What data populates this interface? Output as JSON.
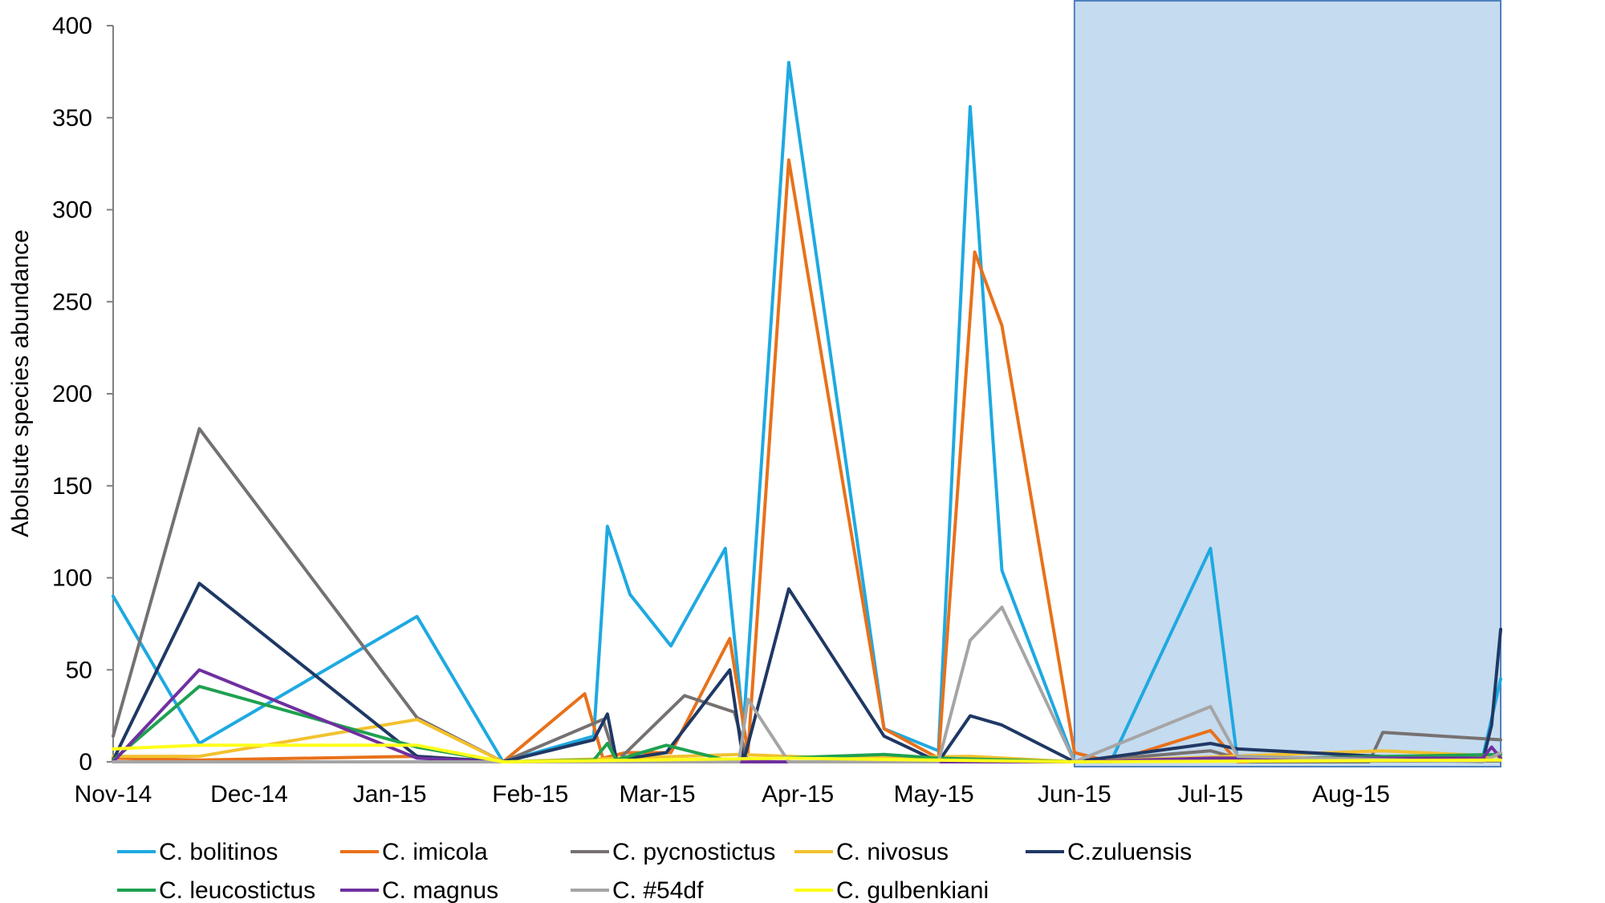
{
  "chart_data": {
    "type": "line",
    "title": "",
    "xlabel": "",
    "ylabel": "Abolsute species abundance",
    "ylim": [
      0,
      400
    ],
    "yticks": [
      0,
      50,
      100,
      150,
      200,
      250,
      300,
      350,
      400
    ],
    "x_range": [
      "2014-11-01",
      "2015-09-03"
    ],
    "x_tick_labels": [
      {
        "label": "Nov-14",
        "date": "2014-11-01"
      },
      {
        "label": "Dec-14",
        "date": "2014-12-01"
      },
      {
        "label": "Jan-15",
        "date": "2015-01-01"
      },
      {
        "label": "Feb-15",
        "date": "2015-02-01"
      },
      {
        "label": "Mar-15",
        "date": "2015-03-01"
      },
      {
        "label": "Apr-15",
        "date": "2015-04-01"
      },
      {
        "label": "May-15",
        "date": "2015-05-01"
      },
      {
        "label": "Jun-15",
        "date": "2015-06-01"
      },
      {
        "label": "Jul-15",
        "date": "2015-07-01"
      },
      {
        "label": "Aug-15",
        "date": "2015-08-01"
      }
    ],
    "highlight_region": {
      "start": "2015-06-01",
      "end": "2015-09-03",
      "color": "#c5dbef",
      "border": "#4f81bd"
    },
    "legend_position": "bottom",
    "series": [
      {
        "name": "C. bolitinos",
        "color": "#1ea9e1",
        "x": [
          "2014-11-01",
          "2014-11-20",
          "2015-01-07",
          "2015-01-26",
          "2015-02-15",
          "2015-02-18",
          "2015-02-23",
          "2015-03-04",
          "2015-03-16",
          "2015-03-20",
          "2015-03-30",
          "2015-04-20",
          "2015-05-02",
          "2015-05-09",
          "2015-05-16",
          "2015-06-01",
          "2015-06-09",
          "2015-07-01",
          "2015-07-07",
          "2015-08-30",
          "2015-09-03"
        ],
        "y": [
          90,
          10,
          79,
          0,
          14,
          128,
          91,
          63,
          116,
          19,
          380,
          18,
          6,
          356,
          104,
          0,
          0,
          116,
          0,
          2,
          45
        ]
      },
      {
        "name": "C. imicola",
        "color": "#e8711a",
        "x": [
          "2014-11-01",
          "2014-11-20",
          "2015-01-07",
          "2015-01-26",
          "2015-02-13",
          "2015-02-17",
          "2015-02-22",
          "2015-03-04",
          "2015-03-17",
          "2015-03-21",
          "2015-03-30",
          "2015-04-20",
          "2015-05-02",
          "2015-05-10",
          "2015-05-16",
          "2015-06-01",
          "2015-06-09",
          "2015-07-01",
          "2015-07-07",
          "2015-08-30",
          "2015-09-03"
        ],
        "y": [
          2,
          1,
          3,
          0,
          37,
          2,
          5,
          5,
          67,
          5,
          327,
          18,
          2,
          277,
          237,
          5,
          0,
          17,
          0,
          2,
          5
        ]
      },
      {
        "name": "C. pycnostictus",
        "color": "#767171",
        "x": [
          "2014-11-01",
          "2014-11-20",
          "2015-01-07",
          "2015-01-26",
          "2015-02-17",
          "2015-02-20",
          "2015-03-07",
          "2015-03-18",
          "2015-03-21",
          "2015-04-10",
          "2015-06-01",
          "2015-07-01",
          "2015-07-10",
          "2015-08-05",
          "2015-08-08",
          "2015-09-03"
        ],
        "y": [
          14,
          181,
          24,
          0,
          23,
          0,
          36,
          27,
          0,
          0,
          0,
          6,
          0,
          0,
          16,
          12
        ]
      },
      {
        "name": "C. nivosus",
        "color": "#f2c12e",
        "x": [
          "2014-11-01",
          "2014-11-20",
          "2015-01-07",
          "2015-01-26",
          "2015-03-19",
          "2015-04-10",
          "2015-05-09",
          "2015-06-01",
          "2015-08-08",
          "2015-09-03"
        ],
        "y": [
          3,
          3,
          23,
          0,
          4,
          2,
          3,
          0,
          6,
          3
        ]
      },
      {
        "name": "C.zuluensis",
        "color": "#1f3864",
        "x": [
          "2014-11-01",
          "2014-11-20",
          "2015-01-07",
          "2015-01-26",
          "2015-02-15",
          "2015-02-18",
          "2015-02-20",
          "2015-03-03",
          "2015-03-17",
          "2015-03-20",
          "2015-03-30",
          "2015-04-20",
          "2015-05-02",
          "2015-05-09",
          "2015-05-16",
          "2015-06-01",
          "2015-07-01",
          "2015-07-07",
          "2015-08-30",
          "2015-09-01",
          "2015-09-03"
        ],
        "y": [
          1,
          97,
          3,
          0,
          12,
          26,
          1,
          5,
          50,
          0,
          94,
          14,
          0,
          25,
          20,
          0,
          10,
          7,
          0,
          20,
          72
        ]
      },
      {
        "name": "C. leucostictus",
        "color": "#1fa150",
        "x": [
          "2014-11-01",
          "2014-11-20",
          "2015-01-07",
          "2015-01-26",
          "2015-02-15",
          "2015-02-18",
          "2015-02-20",
          "2015-03-03",
          "2015-03-16",
          "2015-04-20",
          "2015-05-02",
          "2015-06-01",
          "2015-09-03"
        ],
        "y": [
          1,
          41,
          8,
          0,
          1,
          10,
          1,
          9,
          1,
          4,
          2,
          0,
          4
        ]
      },
      {
        "name": "C. magnus",
        "color": "#7030a0",
        "x": [
          "2014-11-01",
          "2014-11-20",
          "2015-01-07",
          "2015-01-26",
          "2015-06-01",
          "2015-07-01",
          "2015-08-30",
          "2015-09-01",
          "2015-09-03"
        ],
        "y": [
          0,
          50,
          2,
          0,
          0,
          2,
          2,
          8,
          2
        ]
      },
      {
        "name": "C. #54df",
        "color": "#a5a5a5",
        "x": [
          "2014-11-01",
          "2015-03-19",
          "2015-03-21",
          "2015-03-30",
          "2015-05-02",
          "2015-05-09",
          "2015-05-16",
          "2015-06-01",
          "2015-07-01",
          "2015-07-07",
          "2015-08-30",
          "2015-09-03"
        ],
        "y": [
          0,
          0,
          34,
          0,
          0,
          66,
          84,
          0,
          30,
          3,
          0,
          5
        ]
      },
      {
        "name": "C. gulbenkiani",
        "color": "#ffff1a",
        "x": [
          "2014-11-01",
          "2014-11-20",
          "2015-01-07",
          "2015-01-26",
          "2015-03-30",
          "2015-06-01",
          "2015-09-03"
        ],
        "y": [
          7,
          9,
          9,
          0,
          2,
          0,
          1
        ]
      }
    ]
  }
}
